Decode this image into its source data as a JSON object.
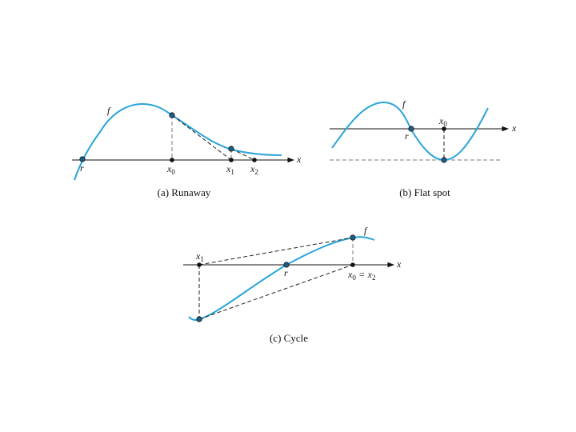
{
  "panel_a": {
    "caption": "(a) Runaway",
    "f_label": "f",
    "x_axis_label": "x",
    "root_label": "r",
    "x0": {
      "base": "x",
      "sub": "0"
    },
    "x1": {
      "base": "x",
      "sub": "1"
    },
    "x2": {
      "base": "x",
      "sub": "2"
    }
  },
  "panel_b": {
    "caption": "(b) Flat spot",
    "f_label": "f",
    "x_axis_label": "x",
    "root_label": "r",
    "x0": {
      "base": "x",
      "sub": "0"
    }
  },
  "panel_c": {
    "caption": "(c) Cycle",
    "f_label": "f",
    "x_axis_label": "x",
    "root_label": "r",
    "x1": {
      "base": "x",
      "sub": "1"
    },
    "x0": {
      "base": "x",
      "sub": "0"
    },
    "equals": "=",
    "x2": {
      "base": "x",
      "sub": "2"
    }
  },
  "colors": {
    "curve": "#2aa4d8",
    "axis": "#111111"
  }
}
